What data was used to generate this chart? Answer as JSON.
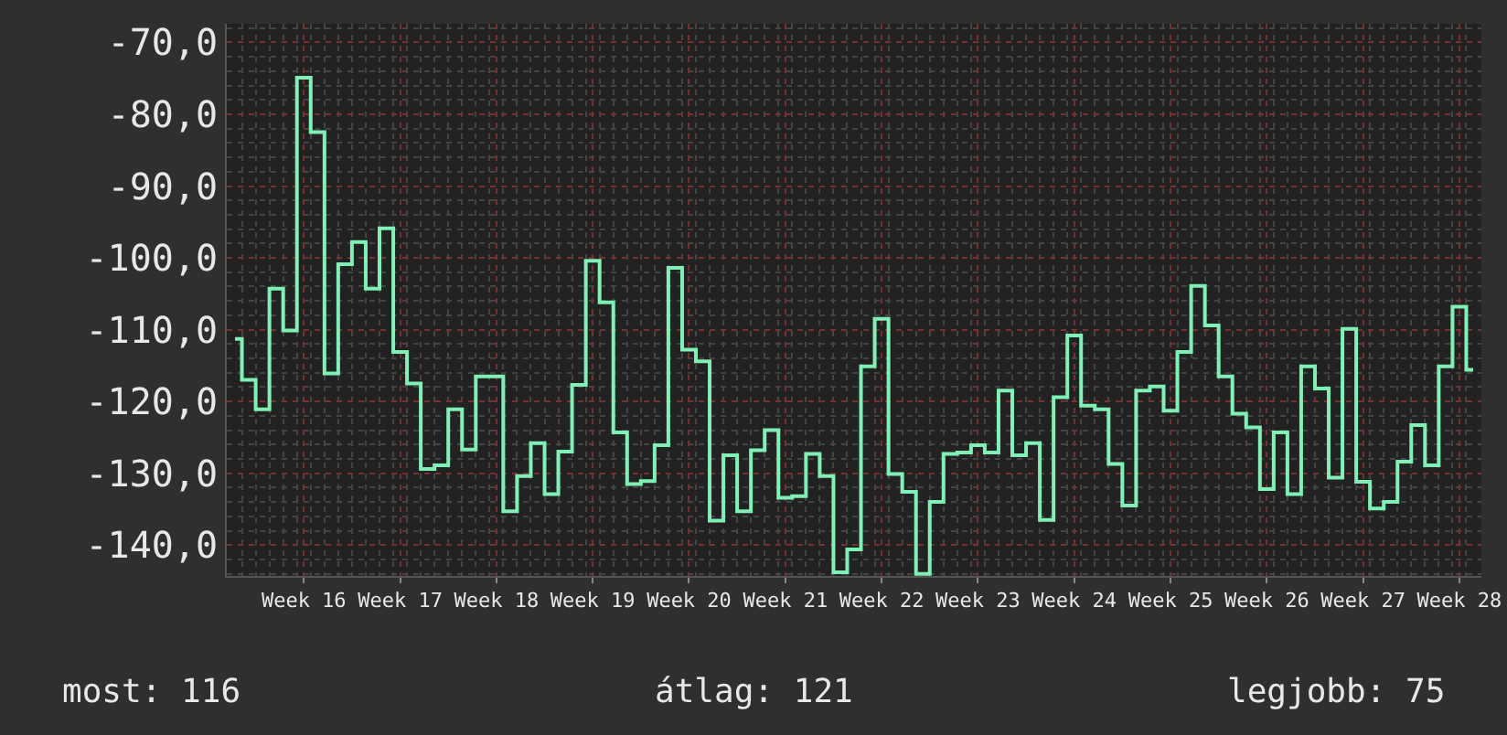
{
  "chart_data": {
    "type": "step",
    "categories": [
      null,
      null,
      null,
      null,
      null,
      "Week 16",
      null,
      null,
      null,
      null,
      null,
      null,
      "Week 17",
      null,
      null,
      null,
      null,
      null,
      null,
      "Week 18",
      null,
      null,
      null,
      null,
      null,
      null,
      "Week 19",
      null,
      null,
      null,
      null,
      null,
      null,
      "Week 20",
      null,
      null,
      null,
      null,
      null,
      null,
      "Week 21",
      null,
      null,
      null,
      null,
      null,
      null,
      "Week 22",
      null,
      null,
      null,
      null,
      null,
      null,
      "Week 23",
      null,
      null,
      null,
      null,
      null,
      null,
      "Week 24",
      null,
      null,
      null,
      null,
      null,
      null,
      "Week 25",
      null,
      null,
      null,
      null,
      null,
      null,
      "Week 26",
      null,
      null,
      null,
      null,
      null,
      null,
      "Week 27",
      null,
      null,
      null,
      null,
      null,
      null,
      "Week 28",
      null
    ],
    "values": [
      -111.3,
      -117.0,
      -121.1,
      -104.3,
      -110.1,
      -74.9,
      -82.5,
      -116.1,
      -100.9,
      -97.8,
      -104.3,
      -95.9,
      -113.1,
      -117.5,
      -129.4,
      -128.9,
      -121.1,
      -126.7,
      -116.5,
      -116.5,
      -135.3,
      -130.4,
      -125.8,
      -132.9,
      -127.0,
      -117.7,
      -100.4,
      -106.2,
      -124.3,
      -131.5,
      -131.1,
      -126.1,
      -101.4,
      -112.8,
      -114.4,
      -136.6,
      -127.5,
      -135.3,
      -126.8,
      -124.0,
      -133.4,
      -133.2,
      -127.3,
      -130.4,
      -143.8,
      -140.6,
      -115.1,
      -108.5,
      -130.1,
      -132.6,
      -144.0,
      -134.0,
      -127.3,
      -127.1,
      -126.1,
      -127.1,
      -118.5,
      -127.5,
      -125.8,
      -136.5,
      -119.4,
      -110.8,
      -120.6,
      -121.1,
      -128.7,
      -134.5,
      -118.5,
      -117.9,
      -121.3,
      -113.1,
      -103.9,
      -109.4,
      -116.5,
      -121.7,
      -123.6,
      -132.2,
      -124.3,
      -132.9,
      -115.1,
      -118.2,
      -130.6,
      -109.9,
      -131.2,
      -134.9,
      -134.0,
      -128.4,
      -123.3,
      -128.9,
      -115.1,
      -106.8,
      -115.6
    ],
    "color": "#7ef2b4",
    "ylim": [
      -144.3,
      -67.4
    ],
    "yticks": [
      {
        "value": -140,
        "label": "-140,0"
      },
      {
        "value": -130,
        "label": "-130,0"
      },
      {
        "value": -120,
        "label": "-120,0"
      },
      {
        "value": -110,
        "label": "-110,0"
      },
      {
        "value": -100,
        "label": "-100,0"
      },
      {
        "value": -90,
        "label": "-90,0"
      },
      {
        "value": -80,
        "label": "-80,0"
      },
      {
        "value": -70,
        "label": "-70,0"
      }
    ],
    "grid": true,
    "marker": "none",
    "line_style": "solid",
    "annotations": [
      "most: 116",
      "átlag: 121",
      "legjobb: 75"
    ]
  }
}
